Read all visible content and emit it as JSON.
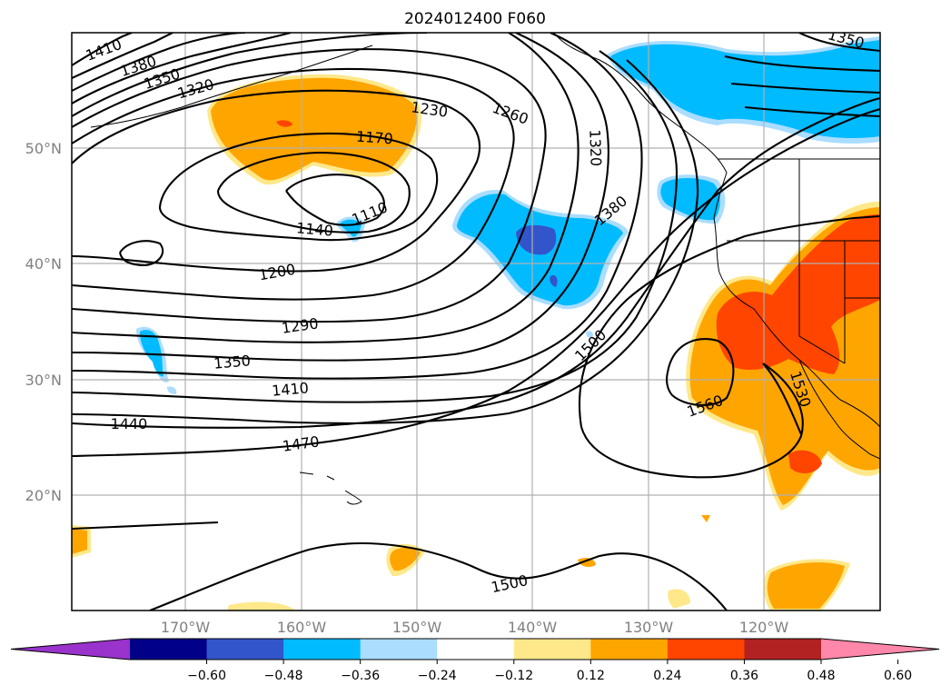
{
  "title": "2024012400 F060",
  "lat_labels": [
    "50°N",
    "40°N",
    "30°N",
    "20°N"
  ],
  "lon_labels": [
    "170°W",
    "160°W",
    "150°W",
    "140°W",
    "130°W",
    "120°W"
  ],
  "contour_labels": {
    "c1410a": "1410",
    "c1380a": "1380",
    "c1350a": "1350",
    "c1320a": "1320",
    "c1230": "1230",
    "c1260": "1260",
    "c1170": "1170",
    "c1320b": "1320",
    "c1110": "1110",
    "c1140": "1140",
    "c1380b": "1380",
    "c1200": "1200",
    "c1290": "1290",
    "c1350b": "1350",
    "c1410b": "1410",
    "c1500a": "1500",
    "c1440": "1440",
    "c1470": "1470",
    "c1560": "1560",
    "c1530": "1530",
    "c1500b": "1500",
    "c1350c": "1350"
  },
  "colorbar": {
    "ticks": [
      "−0.60",
      "−0.48",
      "−0.36",
      "−0.24",
      "−0.12",
      "0.12",
      "0.24",
      "0.36",
      "0.48",
      "0.60"
    ],
    "colors": [
      "#9933cc",
      "#000088",
      "#3355cc",
      "#00bbff",
      "#aaddff",
      "#ffffff",
      "#ffe88a",
      "#ffa500",
      "#ff4500",
      "#b22222",
      "#ff88aa"
    ]
  },
  "colors": {
    "neg_light": "#aaddff",
    "neg": "#00bbff",
    "neg_strong": "#3355cc",
    "pos_light": "#ffe88a",
    "pos": "#ffa500",
    "pos_strong": "#ff4500"
  }
}
